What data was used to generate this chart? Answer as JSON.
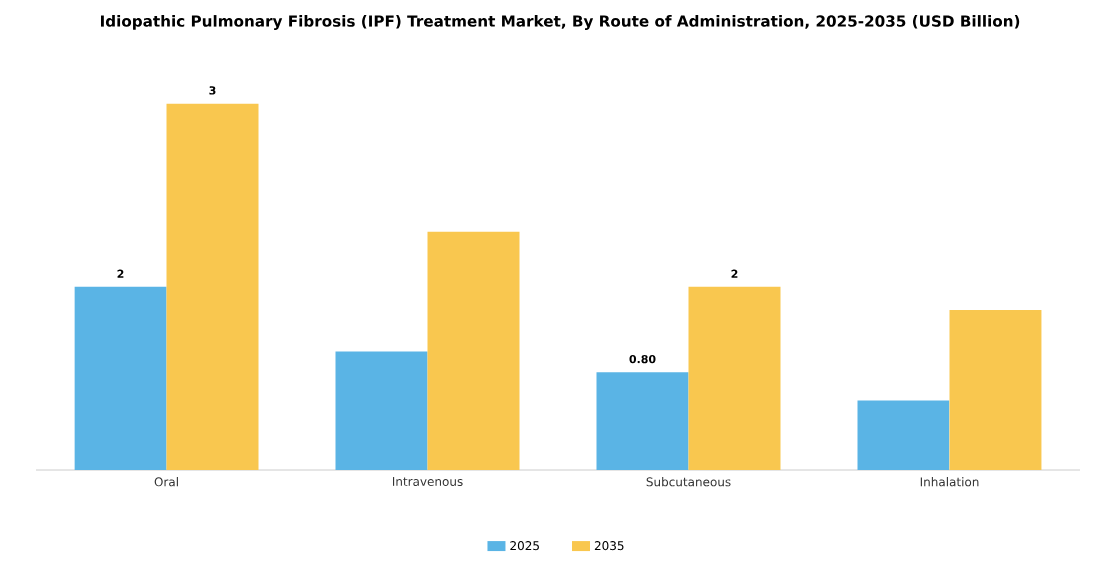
{
  "chart_data": {
    "type": "bar",
    "title": "Idiopathic Pulmonary Fibrosis (IPF) Treatment Market, By Route of Administration, 2025-2035 (USD Billion)",
    "categories": [
      "Oral",
      "Intravenous",
      "Subcutaneous",
      "Inhalation"
    ],
    "series": [
      {
        "name": "2025",
        "color": "#5ab4e5",
        "values": [
          1.5,
          0.97,
          0.8,
          0.57
        ],
        "value_labels": [
          "2",
          null,
          "0.80",
          null
        ]
      },
      {
        "name": "2035",
        "color": "#f9c74f",
        "values": [
          3.0,
          1.95,
          1.5,
          1.31
        ],
        "value_labels": [
          "3",
          null,
          "2",
          null
        ]
      }
    ],
    "legend": "bottom",
    "grid": false
  }
}
